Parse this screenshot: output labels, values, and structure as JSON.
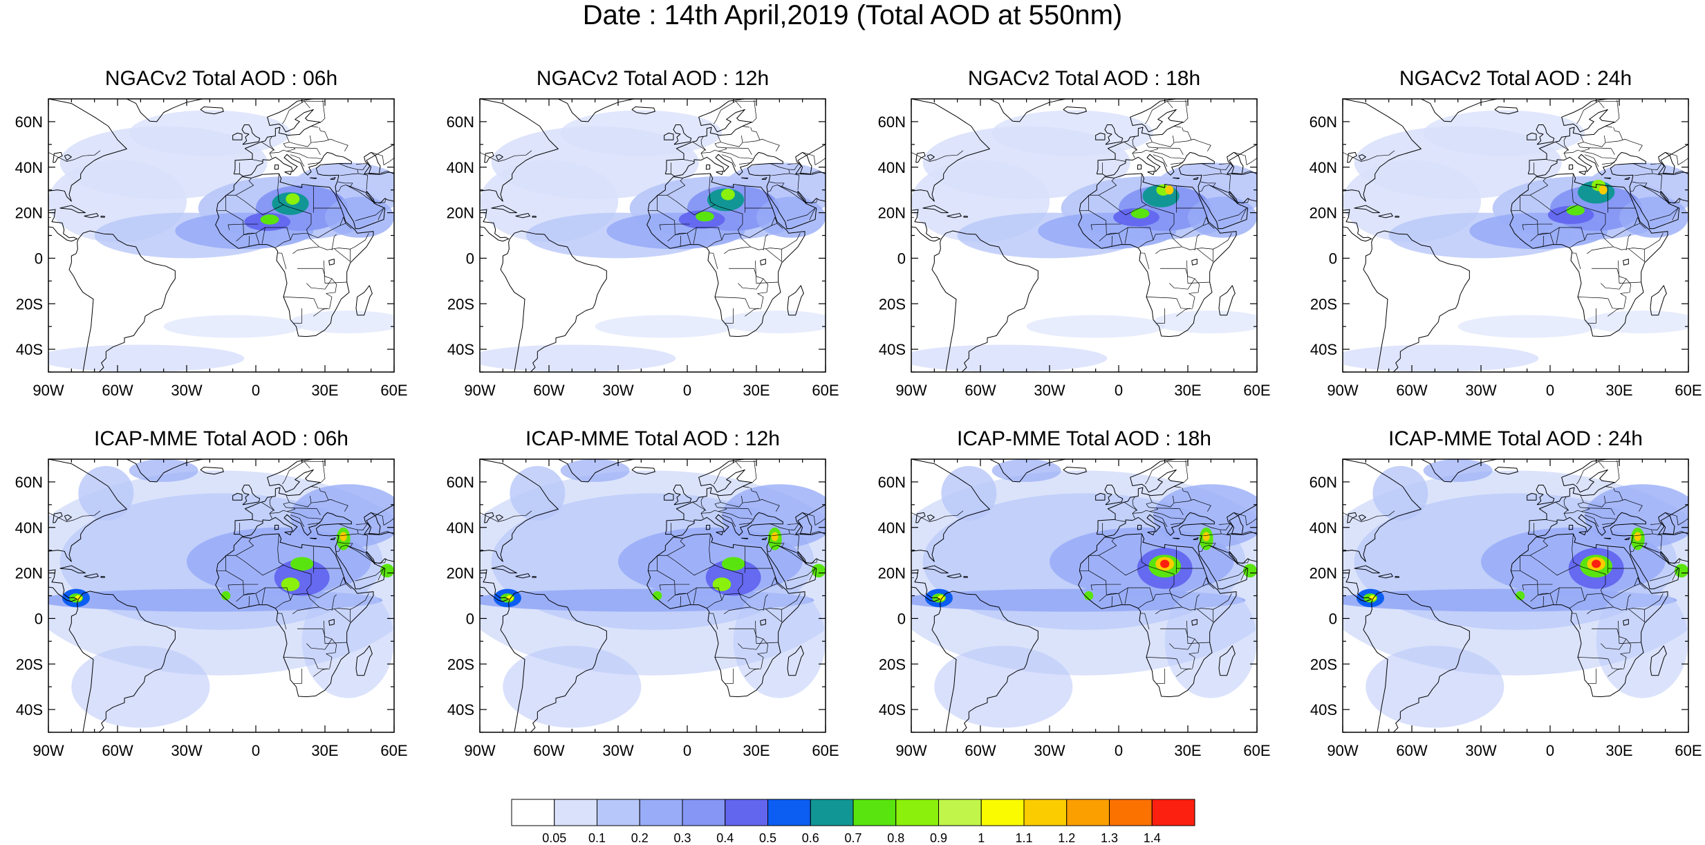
{
  "figure": {
    "title": "Date : 14th April,2019 (Total AOD at 550nm)"
  },
  "palette": {
    "land_outline": "#000000",
    "frame": "#000000",
    "levels": [
      "#ffffff",
      "#d9e1fb",
      "#b8c7f9",
      "#98acf7",
      "#8596f4",
      "#6266ef",
      "#0c5df2",
      "#129695",
      "#5ae40f",
      "#8af00c",
      "#c1f54a",
      "#fbfb00",
      "#fbcc00",
      "#fb9f00",
      "#fb7200",
      "#fb2010"
    ]
  },
  "panels": [
    {
      "title": "NGACv2 Total AOD : 06h",
      "row": 0,
      "col": 0,
      "model": "ngac",
      "hour": 6
    },
    {
      "title": "NGACv2 Total AOD : 12h",
      "row": 0,
      "col": 1,
      "model": "ngac",
      "hour": 12
    },
    {
      "title": "NGACv2 Total AOD : 18h",
      "row": 0,
      "col": 2,
      "model": "ngac",
      "hour": 18
    },
    {
      "title": "NGACv2 Total AOD : 24h",
      "row": 0,
      "col": 3,
      "model": "ngac",
      "hour": 24
    },
    {
      "title": "ICAP-MME Total AOD : 06h",
      "row": 1,
      "col": 0,
      "model": "icap",
      "hour": 6
    },
    {
      "title": "ICAP-MME Total AOD : 12h",
      "row": 1,
      "col": 1,
      "model": "icap",
      "hour": 12
    },
    {
      "title": "ICAP-MME Total AOD : 18h",
      "row": 1,
      "col": 2,
      "model": "icap",
      "hour": 18
    },
    {
      "title": "ICAP-MME Total AOD : 24h",
      "row": 1,
      "col": 3,
      "model": "icap",
      "hour": 24
    }
  ],
  "axes": {
    "lon_range": [
      -90,
      60
    ],
    "lat_range": [
      -50,
      70
    ],
    "lon_ticks": [
      {
        "value": -90,
        "label": "90W"
      },
      {
        "value": -60,
        "label": "60W"
      },
      {
        "value": -30,
        "label": "30W"
      },
      {
        "value": 0,
        "label": "0"
      },
      {
        "value": 30,
        "label": "30E"
      },
      {
        "value": 60,
        "label": "60E"
      }
    ],
    "lat_ticks": [
      {
        "value": 60,
        "label": "60N"
      },
      {
        "value": 40,
        "label": "40N"
      },
      {
        "value": 20,
        "label": "20N"
      },
      {
        "value": 0,
        "label": "0"
      },
      {
        "value": -20,
        "label": "20S"
      },
      {
        "value": -40,
        "label": "40S"
      }
    ]
  },
  "colorbar": {
    "labels": [
      "0.05",
      "0.1",
      "0.2",
      "0.3",
      "0.4",
      "0.5",
      "0.6",
      "0.7",
      "0.8",
      "0.9",
      "1",
      "1.1",
      "1.2",
      "1.3",
      "1.4"
    ]
  }
}
